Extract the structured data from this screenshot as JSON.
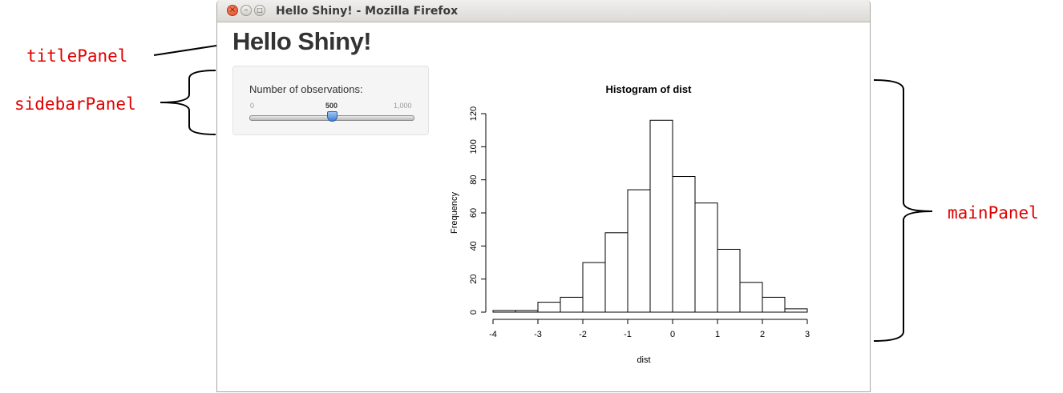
{
  "annotations": {
    "titlePanel": "titlePanel",
    "sidebarPanel": "sidebarPanel",
    "mainPanel": "mainPanel"
  },
  "window": {
    "title": "Hello Shiny! - Mozilla Firefox",
    "controls": {
      "close": "×",
      "minimize": "–",
      "maximize": "□"
    }
  },
  "app": {
    "title": "Hello Shiny!"
  },
  "sidebar": {
    "slider": {
      "label": "Number of observations:",
      "min_label": "0",
      "value_label": "500",
      "max_label": "1,000",
      "min": 0,
      "max": 1000,
      "value": 500
    }
  },
  "colors": {
    "annotation": "#e00000",
    "bar_fill": "#ffffff",
    "bar_stroke": "#000000"
  },
  "chart_data": {
    "type": "bar",
    "title": "Histogram of dist",
    "xlabel": "dist",
    "ylabel": "Frequency",
    "bin_edges": [
      -4,
      -3.5,
      -3,
      -2.5,
      -2,
      -1.5,
      -1,
      -0.5,
      0,
      0.5,
      1,
      1.5,
      2,
      2.5,
      3
    ],
    "values": [
      1,
      1,
      6,
      9,
      30,
      48,
      74,
      116,
      82,
      66,
      38,
      18,
      9,
      2
    ],
    "xlim": [
      -4,
      3
    ],
    "ylim": [
      0,
      120
    ],
    "x_ticks": [
      -4,
      -3,
      -2,
      -1,
      0,
      1,
      2,
      3
    ],
    "y_ticks": [
      0,
      20,
      40,
      60,
      80,
      100,
      120
    ],
    "grid": false,
    "legend": "none"
  }
}
